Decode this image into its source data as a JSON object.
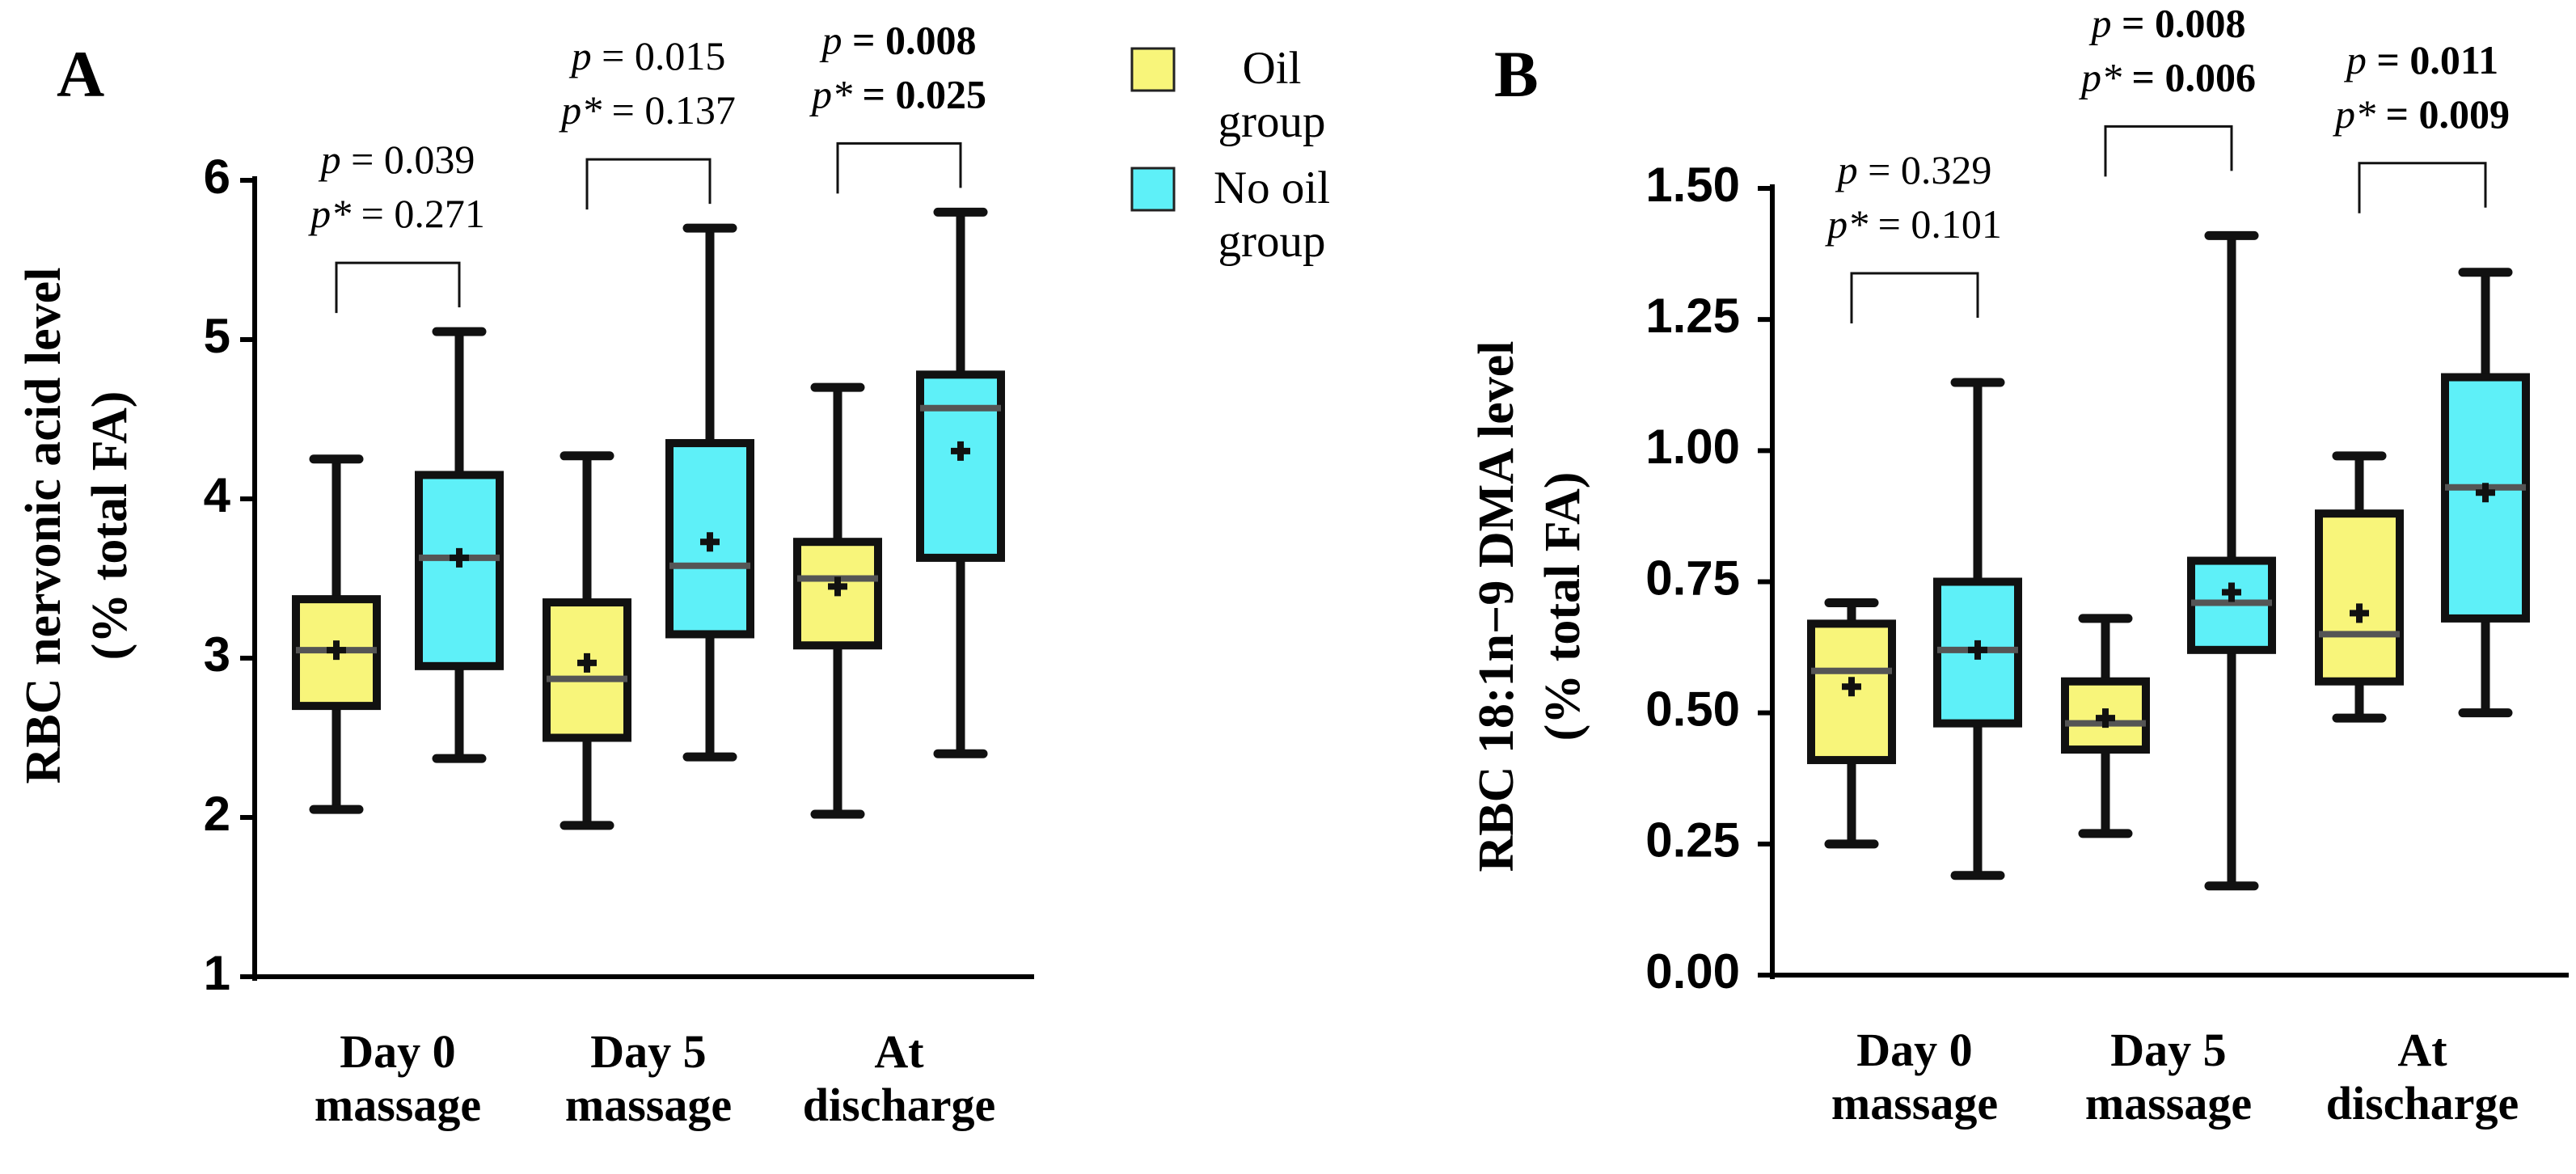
{
  "chart_data": [
    {
      "type": "box",
      "panel": "A",
      "ylabel": [
        "RBC nervonic acid level",
        "(% total FA)"
      ],
      "categories": [
        "Day 0 massage",
        "Day 5 massage",
        "At discharge"
      ],
      "ylim": [
        1,
        6
      ],
      "yticks": [
        1,
        2,
        3,
        4,
        5,
        6
      ],
      "series": [
        {
          "name": "Oil group",
          "color": "#f8f57a",
          "min": [
            2.05,
            1.95,
            2.02
          ],
          "q1": [
            2.7,
            2.5,
            3.08
          ],
          "median": [
            3.05,
            2.87,
            3.5
          ],
          "q3": [
            3.37,
            3.35,
            3.73
          ],
          "max": [
            4.25,
            4.27,
            4.7
          ],
          "mean": [
            3.05,
            2.97,
            3.45
          ]
        },
        {
          "name": "No oil group",
          "color": "#5ef0f8",
          "min": [
            2.37,
            2.38,
            2.4
          ],
          "q1": [
            2.95,
            3.15,
            3.63
          ],
          "median": [
            3.63,
            3.58,
            4.57
          ],
          "q3": [
            4.15,
            4.35,
            4.78
          ],
          "max": [
            5.05,
            5.7,
            5.8
          ],
          "mean": [
            3.63,
            3.73,
            4.3
          ]
        }
      ],
      "annotations": [
        {
          "bold": false,
          "lines": [
            [
              "p",
              "= 0.039"
            ],
            [
              "p*",
              "= 0.271"
            ]
          ]
        },
        {
          "bold": false,
          "lines": [
            [
              "p",
              "= 0.015"
            ],
            [
              "p*",
              "= 0.137"
            ]
          ]
        },
        {
          "bold": true,
          "lines": [
            [
              "p",
              "= 0.008"
            ],
            [
              "p*",
              "= 0.025"
            ]
          ]
        }
      ]
    },
    {
      "type": "box",
      "panel": "B",
      "ylabel": [
        "RBC 18:1n−9 DMA level",
        "(% total FA)"
      ],
      "categories": [
        "Day 0 massage",
        "Day 5 massage",
        "At discharge"
      ],
      "ylim": [
        0,
        1.5
      ],
      "yticks": [
        {
          "value": 0,
          "label": "0.00"
        },
        {
          "value": 0.25,
          "label": "0.25"
        },
        {
          "value": 0.5,
          "label": "0.50"
        },
        {
          "value": 0.75,
          "label": "0.75"
        },
        {
          "value": 1,
          "label": "1.00"
        },
        {
          "value": 1.25,
          "label": "1.25"
        },
        {
          "value": 1.5,
          "label": "1.50"
        }
      ],
      "series": [
        {
          "name": "Oil group",
          "color": "#f8f57a",
          "min": [
            0.25,
            0.27,
            0.49
          ],
          "q1": [
            0.41,
            0.43,
            0.56
          ],
          "median": [
            0.58,
            0.48,
            0.65
          ],
          "q3": [
            0.67,
            0.56,
            0.88
          ],
          "max": [
            0.71,
            0.68,
            0.99
          ],
          "mean": [
            0.55,
            0.49,
            0.69
          ]
        },
        {
          "name": "No oil group",
          "color": "#5ef0f8",
          "min": [
            0.19,
            0.17,
            0.5
          ],
          "q1": [
            0.48,
            0.62,
            0.68
          ],
          "median": [
            0.62,
            0.71,
            0.93
          ],
          "q3": [
            0.75,
            0.79,
            1.14
          ],
          "max": [
            1.13,
            1.41,
            1.34
          ],
          "mean": [
            0.62,
            0.73,
            0.92
          ]
        }
      ],
      "annotations": [
        {
          "bold": false,
          "lines": [
            [
              "p",
              "= 0.329"
            ],
            [
              "p*",
              "= 0.101"
            ]
          ]
        },
        {
          "bold": true,
          "lines": [
            [
              "p",
              "= 0.008"
            ],
            [
              "p*",
              "= 0.006"
            ]
          ]
        },
        {
          "bold": true,
          "lines": [
            [
              "p",
              "= 0.011"
            ],
            [
              "p*",
              "= 0.009"
            ]
          ]
        }
      ]
    }
  ]
}
